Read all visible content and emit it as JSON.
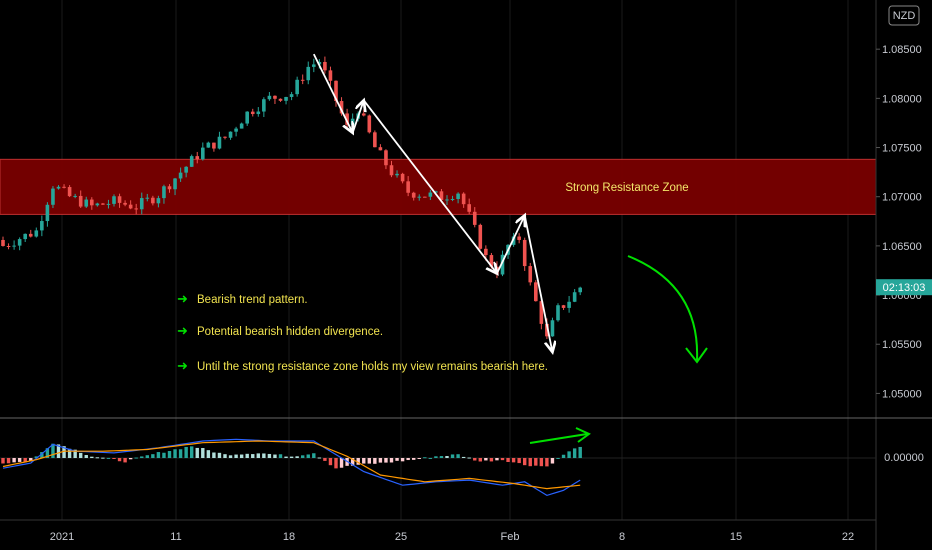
{
  "chart_data": [
    {
      "type": "candlestick",
      "symbol_badge": "NZD",
      "x_tick_labels": [
        "2021",
        "11",
        "18",
        "25",
        "Feb",
        "8",
        "15",
        "22"
      ],
      "y_tick_labels": [
        "1.08500",
        "1.08000",
        "1.07500",
        "1.07000",
        "1.06500",
        "1.06000",
        "1.05500",
        "1.05000"
      ],
      "ylim": [
        1.0475,
        1.09
      ],
      "price_label": "02:13:03",
      "last_price": 1.0608,
      "resistance_zone": {
        "label": "Strong Resistance Zone",
        "low": 1.0682,
        "high": 1.0738,
        "color": "#8b0000"
      },
      "path_points": [
        {
          "idx": 0,
          "close": 1.065
        },
        {
          "idx": 3,
          "close": 1.0658
        },
        {
          "idx": 6,
          "close": 1.0665
        },
        {
          "idx": 9,
          "close": 1.0712
        },
        {
          "idx": 12,
          "close": 1.07
        },
        {
          "idx": 16,
          "close": 1.069
        },
        {
          "idx": 20,
          "close": 1.0695
        },
        {
          "idx": 24,
          "close": 1.069
        },
        {
          "idx": 28,
          "close": 1.0702
        },
        {
          "idx": 32,
          "close": 1.0725
        },
        {
          "idx": 36,
          "close": 1.0748
        },
        {
          "idx": 40,
          "close": 1.076
        },
        {
          "idx": 44,
          "close": 1.0785
        },
        {
          "idx": 48,
          "close": 1.08
        },
        {
          "idx": 52,
          "close": 1.0805
        },
        {
          "idx": 55,
          "close": 1.0832
        },
        {
          "idx": 57,
          "close": 1.0838
        },
        {
          "idx": 59,
          "close": 1.0812
        },
        {
          "idx": 62,
          "close": 1.077
        },
        {
          "idx": 64,
          "close": 1.079
        },
        {
          "idx": 67,
          "close": 1.075
        },
        {
          "idx": 70,
          "close": 1.0725
        },
        {
          "idx": 73,
          "close": 1.0705
        },
        {
          "idx": 76,
          "close": 1.0702
        },
        {
          "idx": 79,
          "close": 1.07
        },
        {
          "idx": 82,
          "close": 1.0705
        },
        {
          "idx": 84,
          "close": 1.068
        },
        {
          "idx": 87,
          "close": 1.0638
        },
        {
          "idx": 89,
          "close": 1.0625
        },
        {
          "idx": 91,
          "close": 1.065
        },
        {
          "idx": 93,
          "close": 1.0658
        },
        {
          "idx": 95,
          "close": 1.061
        },
        {
          "idx": 97,
          "close": 1.0575
        },
        {
          "idx": 98,
          "close": 1.0555
        },
        {
          "idx": 100,
          "close": 1.0585
        },
        {
          "idx": 102,
          "close": 1.0595
        },
        {
          "idx": 104,
          "close": 1.0608
        }
      ],
      "annotations": {
        "white_arrows": [
          [
            {
              "idx": 56,
              "price": 1.0845
            },
            {
              "idx": 63,
              "price": 1.0765
            },
            {
              "idx": 65,
              "price": 1.0798
            },
            {
              "idx": 89,
              "price": 1.0622
            },
            {
              "idx": 94,
              "price": 1.0681
            },
            {
              "idx": 99,
              "price": 1.0542
            }
          ]
        ],
        "green_arc": "curved arrow pointing down"
      },
      "notes": [
        "Bearish trend pattern.",
        "Potential bearish hidden divergence.",
        "Until the strong resistance zone holds my view remains bearish here."
      ]
    },
    {
      "type": "macd",
      "y_tick_labels": [
        "0.00000"
      ],
      "histogram_profile": [
        {
          "idx": 0,
          "value": -0.3
        },
        {
          "idx": 5,
          "value": -0.2
        },
        {
          "idx": 9,
          "value": 0.9
        },
        {
          "idx": 12,
          "value": 0.6
        },
        {
          "idx": 16,
          "value": 0.1
        },
        {
          "idx": 22,
          "value": -0.2
        },
        {
          "idx": 28,
          "value": 0.3
        },
        {
          "idx": 34,
          "value": 0.7
        },
        {
          "idx": 40,
          "value": 0.2
        },
        {
          "idx": 46,
          "value": 0.3
        },
        {
          "idx": 52,
          "value": 0.1
        },
        {
          "idx": 56,
          "value": 0.3
        },
        {
          "idx": 60,
          "value": -0.6
        },
        {
          "idx": 64,
          "value": -0.4
        },
        {
          "idx": 68,
          "value": -0.3
        },
        {
          "idx": 74,
          "value": -0.1
        },
        {
          "idx": 78,
          "value": 0.1
        },
        {
          "idx": 82,
          "value": 0.2
        },
        {
          "idx": 86,
          "value": -0.2
        },
        {
          "idx": 90,
          "value": -0.1
        },
        {
          "idx": 94,
          "value": -0.4
        },
        {
          "idx": 98,
          "value": -0.5
        },
        {
          "idx": 101,
          "value": 0.2
        },
        {
          "idx": 104,
          "value": 0.7
        }
      ],
      "macd_line": [
        {
          "idx": 0,
          "value": -0.6
        },
        {
          "idx": 5,
          "value": -0.3
        },
        {
          "idx": 9,
          "value": 0.8
        },
        {
          "idx": 13,
          "value": 0.4
        },
        {
          "idx": 20,
          "value": 0.3
        },
        {
          "idx": 28,
          "value": 0.6
        },
        {
          "idx": 36,
          "value": 1.0
        },
        {
          "idx": 42,
          "value": 1.1
        },
        {
          "idx": 48,
          "value": 1.0
        },
        {
          "idx": 56,
          "value": 1.0
        },
        {
          "idx": 60,
          "value": 0.2
        },
        {
          "idx": 65,
          "value": -0.8
        },
        {
          "idx": 72,
          "value": -1.6
        },
        {
          "idx": 78,
          "value": -1.4
        },
        {
          "idx": 84,
          "value": -1.3
        },
        {
          "idx": 90,
          "value": -1.6
        },
        {
          "idx": 94,
          "value": -1.4
        },
        {
          "idx": 98,
          "value": -2.2
        },
        {
          "idx": 101,
          "value": -1.9
        },
        {
          "idx": 104,
          "value": -1.3
        }
      ],
      "signal_line": [
        {
          "idx": 0,
          "value": -0.5
        },
        {
          "idx": 6,
          "value": -0.1
        },
        {
          "idx": 11,
          "value": 0.4
        },
        {
          "idx": 18,
          "value": 0.4
        },
        {
          "idx": 26,
          "value": 0.5
        },
        {
          "idx": 36,
          "value": 0.9
        },
        {
          "idx": 46,
          "value": 1.0
        },
        {
          "idx": 56,
          "value": 0.9
        },
        {
          "idx": 62,
          "value": 0.1
        },
        {
          "idx": 68,
          "value": -1.0
        },
        {
          "idx": 76,
          "value": -1.4
        },
        {
          "idx": 84,
          "value": -1.2
        },
        {
          "idx": 92,
          "value": -1.5
        },
        {
          "idx": 98,
          "value": -1.8
        },
        {
          "idx": 104,
          "value": -1.6
        }
      ]
    }
  ],
  "colors": {
    "up": "#26a69a",
    "down": "#ef5350",
    "macd": "#2962ff",
    "signal": "#ff9800",
    "green_arrow": "#00e000",
    "price_label_bg": "#26a69a",
    "grid": "#1a1a1a",
    "panel_divider": "#666666"
  }
}
